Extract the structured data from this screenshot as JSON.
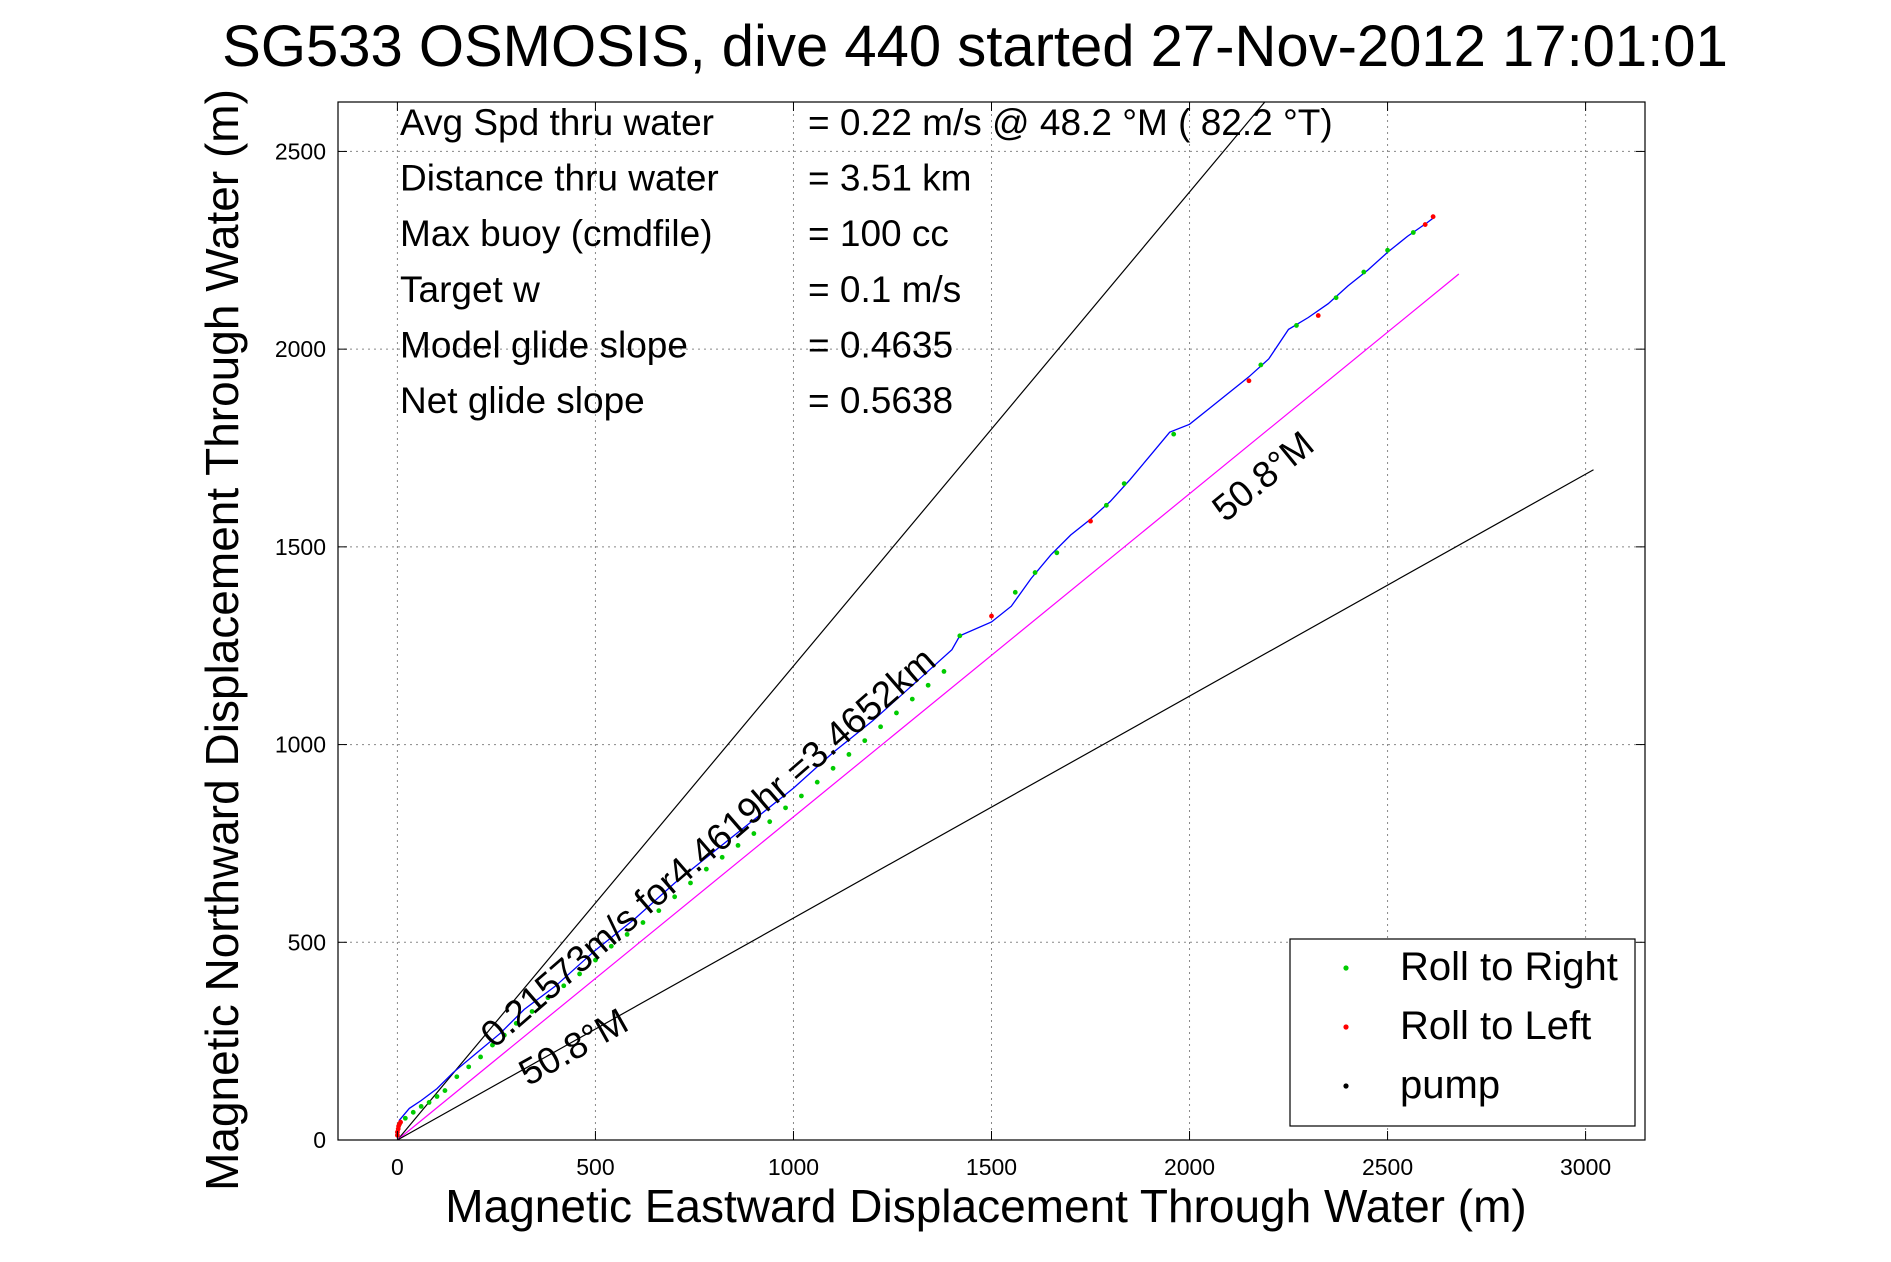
{
  "chart_data": {
    "type": "line",
    "title": "SG533 OSMOSIS, dive 440 started 27-Nov-2012 17:01:01",
    "xlabel": "Magnetic Eastward Displacement Through Water (m)",
    "ylabel": "Magnetic Northward Displacement Through Water (m)",
    "xlim": [
      -150,
      3150
    ],
    "ylim": [
      0,
      2625
    ],
    "xticks": [
      0,
      500,
      1000,
      1500,
      2000,
      2500,
      3000
    ],
    "yticks": [
      0,
      500,
      1000,
      1500,
      2000,
      2500
    ],
    "xtick_labels": [
      "0",
      "500",
      "1000",
      "1500",
      "2000",
      "2500",
      "3000"
    ],
    "ytick_labels": [
      "0",
      "500",
      "1000",
      "1500",
      "2000",
      "2500"
    ],
    "grid": true,
    "grid_style": "dotted",
    "legend_position": "bottom-right",
    "stats": [
      {
        "label": "Avg Spd thru water",
        "value": "=  0.22 m/s @  48.2 °M ( 82.2 °T)"
      },
      {
        "label": "Distance thru water",
        "value": "=  3.51 km"
      },
      {
        "label": "Max buoy (cmdfile)",
        "value": "= 100 cc"
      },
      {
        "label": "Target w",
        "value": "= 0.1 m/s"
      },
      {
        "label": "Model glide slope",
        "value": "= 0.4635"
      },
      {
        "label": "Net glide slope",
        "value": "= 0.5638"
      }
    ],
    "reference_lines": [
      {
        "name": "upper-bound",
        "x": [
          0,
          2190
        ],
        "y": [
          0,
          2625
        ],
        "color": "#000000"
      },
      {
        "name": "heading",
        "x": [
          0,
          2680
        ],
        "y": [
          0,
          2190
        ],
        "color": "#ff00ff"
      },
      {
        "name": "lower-bound",
        "x": [
          0,
          3020
        ],
        "y": [
          0,
          1695
        ],
        "color": "#000000"
      }
    ],
    "annotations": [
      {
        "text": "50.8°M",
        "x": 2090,
        "y": 1560,
        "angle_data": 39.2
      },
      {
        "text": "50.8°M",
        "x": 330,
        "y": 135,
        "angle_data": 29.3
      },
      {
        "text": "0.21573m/s for4.4619hr =3.4652km",
        "x": 245,
        "y": 230,
        "angle_data": 41.0
      }
    ],
    "track": {
      "name": "track",
      "color": "#0000ff",
      "x": [
        0,
        5,
        30,
        60,
        100,
        140,
        200,
        260,
        320,
        400,
        500,
        600,
        700,
        800,
        900,
        1000,
        1100,
        1200,
        1300,
        1400,
        1420,
        1500,
        1550,
        1600,
        1650,
        1700,
        1750,
        1800,
        1850,
        1900,
        1950,
        2000,
        2050,
        2100,
        2150,
        2200,
        2250,
        2300,
        2350,
        2400,
        2450,
        2500,
        2550,
        2600,
        2620
      ],
      "y": [
        10,
        50,
        80,
        100,
        130,
        170,
        220,
        270,
        330,
        390,
        480,
        560,
        650,
        730,
        810,
        890,
        980,
        1060,
        1150,
        1240,
        1275,
        1310,
        1350,
        1420,
        1480,
        1530,
        1570,
        1615,
        1670,
        1730,
        1790,
        1810,
        1850,
        1890,
        1930,
        1975,
        2050,
        2080,
        2115,
        2160,
        2200,
        2245,
        2285,
        2320,
        2335
      ]
    },
    "roll_right_points": {
      "name": "Roll to Right",
      "color": "#00cc00",
      "x": [
        5,
        20,
        40,
        60,
        80,
        100,
        120,
        150,
        180,
        210,
        240,
        270,
        300,
        340,
        380,
        420,
        460,
        500,
        540,
        580,
        620,
        660,
        700,
        740,
        780,
        820,
        860,
        900,
        940,
        980,
        1020,
        1060,
        1100,
        1140,
        1180,
        1220,
        1260,
        1300,
        1340,
        1380,
        1420,
        1560,
        1610,
        1665,
        1790,
        1835,
        1960,
        2180,
        2270,
        2370,
        2440,
        2500,
        2565
      ],
      "y": [
        40,
        55,
        70,
        85,
        95,
        110,
        125,
        160,
        185,
        210,
        240,
        265,
        295,
        325,
        360,
        390,
        420,
        455,
        490,
        520,
        550,
        580,
        615,
        650,
        685,
        715,
        745,
        775,
        805,
        840,
        870,
        905,
        940,
        975,
        1010,
        1045,
        1080,
        1115,
        1150,
        1185,
        1275,
        1385,
        1435,
        1485,
        1605,
        1660,
        1785,
        1960,
        2060,
        2130,
        2195,
        2250,
        2295
      ]
    },
    "roll_left_points": {
      "name": "Roll to Left",
      "color": "#ff0000",
      "x": [
        0,
        0,
        2,
        3,
        5,
        8,
        1500,
        1750,
        2150,
        2325,
        2595,
        2615
      ],
      "y": [
        12,
        20,
        28,
        35,
        40,
        45,
        1325,
        1565,
        1920,
        2085,
        2315,
        2335
      ]
    },
    "pump_points": {
      "name": "pump",
      "color": "#000000",
      "x": [],
      "y": []
    },
    "legend": [
      {
        "label": "Roll to Right",
        "color": "#00cc00"
      },
      {
        "label": "Roll to Left",
        "color": "#ff0000"
      },
      {
        "label": "pump",
        "color": "#000000"
      }
    ]
  }
}
